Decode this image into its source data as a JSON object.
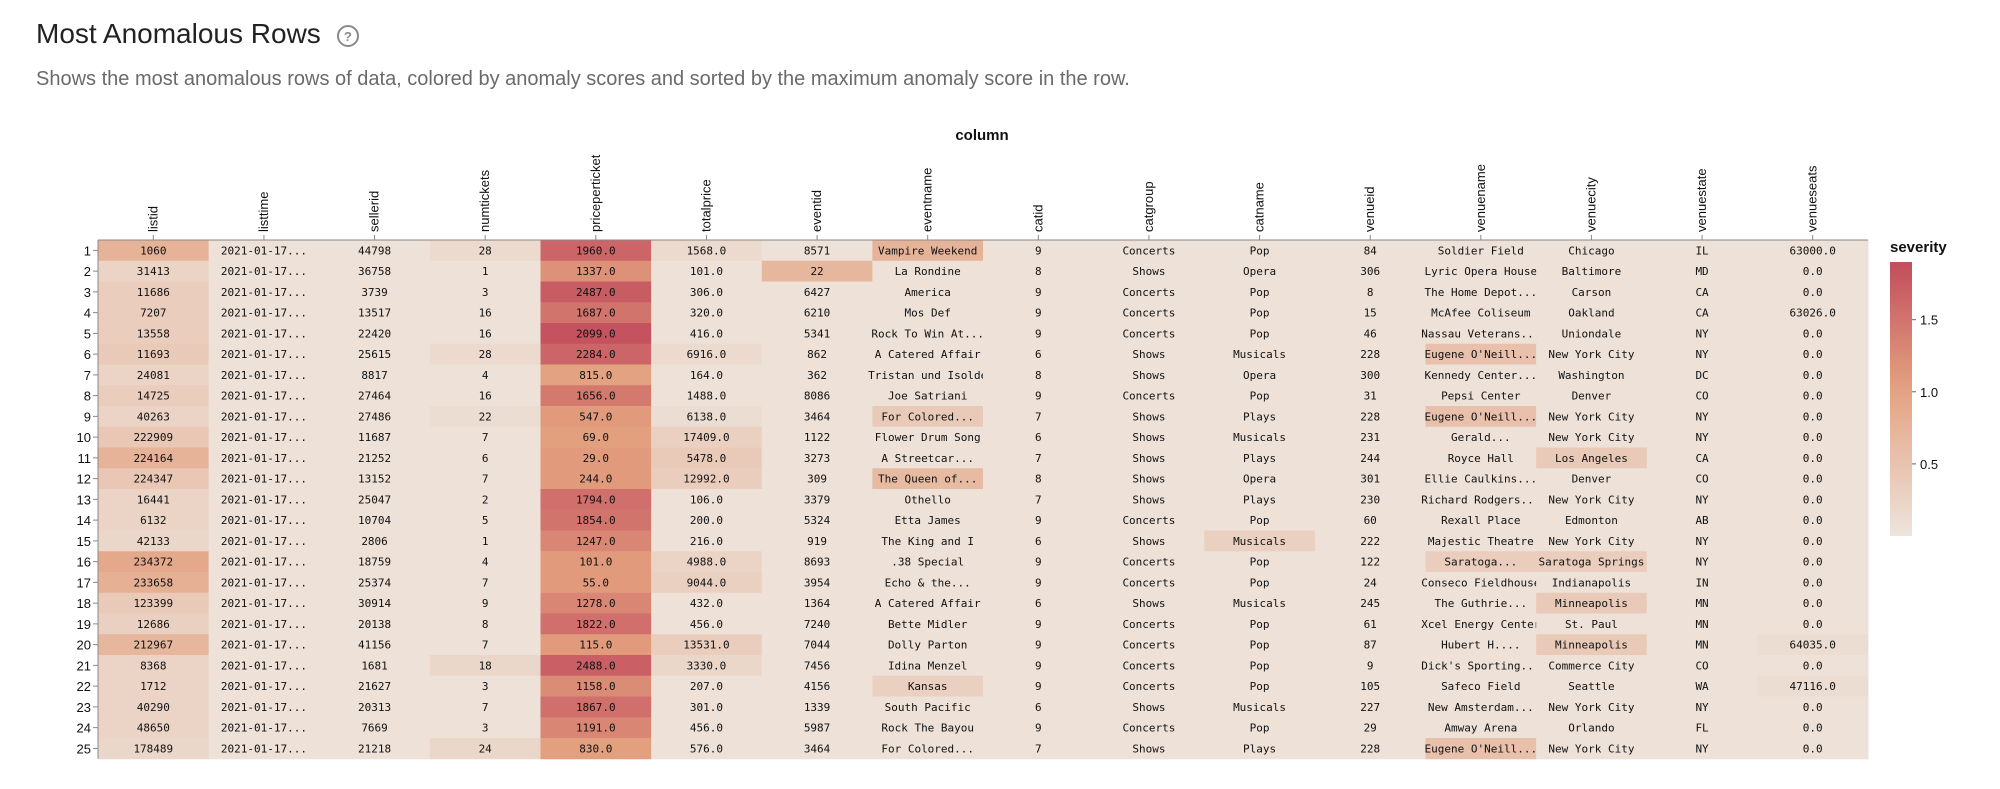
{
  "header": {
    "title": "Most Anomalous Rows",
    "help_glyph": "?",
    "subtitle": "Shows the most anomalous rows of data, colored by anomaly scores and sorted by the maximum anomaly score in the row."
  },
  "colors": {
    "low": "#ede4dc",
    "mid": "#e3a07e",
    "high": "#c24d5d"
  },
  "chart_data": {
    "type": "heatmap",
    "xlabel": "column",
    "legend_title": "severity",
    "legend_position": "right",
    "legend_ticks": [
      0.5,
      1.0,
      1.5
    ],
    "legend_tick_labels": [
      "0.5",
      "1.0",
      "1.5"
    ],
    "severity_range": [
      0,
      1.9
    ],
    "columns": [
      "listid",
      "listtime",
      "sellerid",
      "numtickets",
      "priceperticket",
      "totalprice",
      "eventid",
      "eventname",
      "catid",
      "catgroup",
      "catname",
      "venueid",
      "venuename",
      "venuecity",
      "venuestate",
      "venueseats"
    ],
    "row_labels": [
      "1",
      "2",
      "3",
      "4",
      "5",
      "6",
      "7",
      "8",
      "9",
      "10",
      "11",
      "12",
      "13",
      "14",
      "15",
      "16",
      "17",
      "18",
      "19",
      "20",
      "21",
      "22",
      "23",
      "24",
      "25"
    ],
    "values": [
      [
        "1060",
        "2021-01-17...",
        "44798",
        "28",
        "1960.0",
        "1568.0",
        "8571",
        "Vampire Weekend",
        "9",
        "Concerts",
        "Pop",
        "84",
        "Soldier Field",
        "Chicago",
        "IL",
        "63000.0"
      ],
      [
        "31413",
        "2021-01-17...",
        "36758",
        "1",
        "1337.0",
        "101.0",
        "22",
        "La Rondine",
        "8",
        "Shows",
        "Opera",
        "306",
        "Lyric Opera House",
        "Baltimore",
        "MD",
        "0.0"
      ],
      [
        "11686",
        "2021-01-17...",
        "3739",
        "3",
        "2487.0",
        "306.0",
        "6427",
        "America",
        "9",
        "Concerts",
        "Pop",
        "8",
        "The Home Depot...",
        "Carson",
        "CA",
        "0.0"
      ],
      [
        "7207",
        "2021-01-17...",
        "13517",
        "16",
        "1687.0",
        "320.0",
        "6210",
        "Mos Def",
        "9",
        "Concerts",
        "Pop",
        "15",
        "McAfee Coliseum",
        "Oakland",
        "CA",
        "63026.0"
      ],
      [
        "13558",
        "2021-01-17...",
        "22420",
        "16",
        "2099.0",
        "416.0",
        "5341",
        "Rock To Win At...",
        "9",
        "Concerts",
        "Pop",
        "46",
        "Nassau Veterans...",
        "Uniondale",
        "NY",
        "0.0"
      ],
      [
        "11693",
        "2021-01-17...",
        "25615",
        "28",
        "2284.0",
        "6916.0",
        "862",
        "A Catered Affair",
        "6",
        "Shows",
        "Musicals",
        "228",
        "Eugene O'Neill...",
        "New York City",
        "NY",
        "0.0"
      ],
      [
        "24081",
        "2021-01-17...",
        "8817",
        "4",
        "815.0",
        "164.0",
        "362",
        "Tristan und Isolde",
        "8",
        "Shows",
        "Opera",
        "300",
        "Kennedy Center...",
        "Washington",
        "DC",
        "0.0"
      ],
      [
        "14725",
        "2021-01-17...",
        "27464",
        "16",
        "1656.0",
        "1488.0",
        "8086",
        "Joe Satriani",
        "9",
        "Concerts",
        "Pop",
        "31",
        "Pepsi Center",
        "Denver",
        "CO",
        "0.0"
      ],
      [
        "40263",
        "2021-01-17...",
        "27486",
        "22",
        "547.0",
        "6138.0",
        "3464",
        "For Colored...",
        "7",
        "Shows",
        "Plays",
        "228",
        "Eugene O'Neill...",
        "New York City",
        "NY",
        "0.0"
      ],
      [
        "222909",
        "2021-01-17...",
        "11687",
        "7",
        "69.0",
        "17409.0",
        "1122",
        "Flower Drum Song",
        "6",
        "Shows",
        "Musicals",
        "231",
        "Gerald...",
        "New York City",
        "NY",
        "0.0"
      ],
      [
        "224164",
        "2021-01-17...",
        "21252",
        "6",
        "29.0",
        "5478.0",
        "3273",
        "A Streetcar...",
        "7",
        "Shows",
        "Plays",
        "244",
        "Royce Hall",
        "Los Angeles",
        "CA",
        "0.0"
      ],
      [
        "224347",
        "2021-01-17...",
        "13152",
        "7",
        "244.0",
        "12992.0",
        "309",
        "The Queen of...",
        "8",
        "Shows",
        "Opera",
        "301",
        "Ellie Caulkins...",
        "Denver",
        "CO",
        "0.0"
      ],
      [
        "16441",
        "2021-01-17...",
        "25047",
        "2",
        "1794.0",
        "106.0",
        "3379",
        "Othello",
        "7",
        "Shows",
        "Plays",
        "230",
        "Richard Rodgers...",
        "New York City",
        "NY",
        "0.0"
      ],
      [
        "6132",
        "2021-01-17...",
        "10704",
        "5",
        "1854.0",
        "200.0",
        "5324",
        "Etta James",
        "9",
        "Concerts",
        "Pop",
        "60",
        "Rexall Place",
        "Edmonton",
        "AB",
        "0.0"
      ],
      [
        "42133",
        "2021-01-17...",
        "2806",
        "1",
        "1247.0",
        "216.0",
        "919",
        "The King and I",
        "6",
        "Shows",
        "Musicals",
        "222",
        "Majestic Theatre",
        "New York City",
        "NY",
        "0.0"
      ],
      [
        "234372",
        "2021-01-17...",
        "18759",
        "4",
        "101.0",
        "4988.0",
        "8693",
        ".38 Special",
        "9",
        "Concerts",
        "Pop",
        "122",
        "Saratoga...",
        "Saratoga Springs",
        "NY",
        "0.0"
      ],
      [
        "233658",
        "2021-01-17...",
        "25374",
        "7",
        "55.0",
        "9044.0",
        "3954",
        "Echo & the...",
        "9",
        "Concerts",
        "Pop",
        "24",
        "Conseco Fieldhouse",
        "Indianapolis",
        "IN",
        "0.0"
      ],
      [
        "123399",
        "2021-01-17...",
        "30914",
        "9",
        "1278.0",
        "432.0",
        "1364",
        "A Catered Affair",
        "6",
        "Shows",
        "Musicals",
        "245",
        "The Guthrie...",
        "Minneapolis",
        "MN",
        "0.0"
      ],
      [
        "12686",
        "2021-01-17...",
        "20138",
        "8",
        "1822.0",
        "456.0",
        "7240",
        "Bette Midler",
        "9",
        "Concerts",
        "Pop",
        "61",
        "Xcel Energy Center",
        "St. Paul",
        "MN",
        "0.0"
      ],
      [
        "212967",
        "2021-01-17...",
        "41156",
        "7",
        "115.0",
        "13531.0",
        "7044",
        "Dolly Parton",
        "9",
        "Concerts",
        "Pop",
        "87",
        "Hubert H....",
        "Minneapolis",
        "MN",
        "64035.0"
      ],
      [
        "8368",
        "2021-01-17...",
        "1681",
        "18",
        "2488.0",
        "3330.0",
        "7456",
        "Idina Menzel",
        "9",
        "Concerts",
        "Pop",
        "9",
        "Dick's Sporting...",
        "Commerce City",
        "CO",
        "0.0"
      ],
      [
        "1712",
        "2021-01-17...",
        "21627",
        "3",
        "1158.0",
        "207.0",
        "4156",
        "Kansas",
        "9",
        "Concerts",
        "Pop",
        "105",
        "Safeco Field",
        "Seattle",
        "WA",
        "47116.0"
      ],
      [
        "40290",
        "2021-01-17...",
        "20313",
        "7",
        "1867.0",
        "301.0",
        "1339",
        "South Pacific",
        "6",
        "Shows",
        "Musicals",
        "227",
        "New Amsterdam...",
        "New York City",
        "NY",
        "0.0"
      ],
      [
        "48650",
        "2021-01-17...",
        "7669",
        "3",
        "1191.0",
        "456.0",
        "5987",
        "Rock The Bayou",
        "9",
        "Concerts",
        "Pop",
        "29",
        "Amway Arena",
        "Orlando",
        "FL",
        "0.0"
      ],
      [
        "178489",
        "2021-01-17...",
        "21218",
        "24",
        "830.0",
        "576.0",
        "3464",
        "For Colored...",
        "7",
        "Shows",
        "Plays",
        "228",
        "Eugene O'Neill...",
        "New York City",
        "NY",
        "0.0"
      ]
    ],
    "severity": [
      [
        0.75,
        0.05,
        0.05,
        0.15,
        1.65,
        0.15,
        0.05,
        0.75,
        0.05,
        0.05,
        0.05,
        0.05,
        0.05,
        0.05,
        0.05,
        0.05
      ],
      [
        0.25,
        0.05,
        0.05,
        0.05,
        1.2,
        0.05,
        0.7,
        0.05,
        0.05,
        0.05,
        0.05,
        0.05,
        0.05,
        0.05,
        0.05,
        0.05
      ],
      [
        0.35,
        0.05,
        0.05,
        0.05,
        1.75,
        0.05,
        0.05,
        0.05,
        0.05,
        0.05,
        0.05,
        0.05,
        0.05,
        0.05,
        0.05,
        0.05
      ],
      [
        0.35,
        0.05,
        0.05,
        0.05,
        1.5,
        0.05,
        0.05,
        0.05,
        0.05,
        0.05,
        0.05,
        0.05,
        0.05,
        0.05,
        0.05,
        0.05
      ],
      [
        0.35,
        0.05,
        0.05,
        0.05,
        1.85,
        0.05,
        0.05,
        0.05,
        0.05,
        0.05,
        0.05,
        0.05,
        0.05,
        0.05,
        0.05,
        0.05
      ],
      [
        0.4,
        0.05,
        0.05,
        0.15,
        1.65,
        0.15,
        0.05,
        0.05,
        0.05,
        0.05,
        0.05,
        0.05,
        0.55,
        0.05,
        0.05,
        0.05
      ],
      [
        0.25,
        0.05,
        0.05,
        0.05,
        1.0,
        0.05,
        0.05,
        0.05,
        0.05,
        0.05,
        0.05,
        0.05,
        0.05,
        0.05,
        0.05,
        0.05
      ],
      [
        0.35,
        0.05,
        0.05,
        0.05,
        1.45,
        0.05,
        0.05,
        0.05,
        0.05,
        0.05,
        0.05,
        0.05,
        0.05,
        0.05,
        0.05,
        0.05
      ],
      [
        0.25,
        0.05,
        0.05,
        0.1,
        1.1,
        0.1,
        0.05,
        0.4,
        0.05,
        0.05,
        0.05,
        0.05,
        0.55,
        0.05,
        0.05,
        0.05
      ],
      [
        0.45,
        0.05,
        0.05,
        0.05,
        1.05,
        0.3,
        0.05,
        0.05,
        0.05,
        0.05,
        0.05,
        0.05,
        0.05,
        0.05,
        0.05,
        0.05
      ],
      [
        0.75,
        0.05,
        0.05,
        0.05,
        1.1,
        0.4,
        0.05,
        0.05,
        0.05,
        0.05,
        0.05,
        0.05,
        0.05,
        0.4,
        0.05,
        0.05
      ],
      [
        0.45,
        0.05,
        0.05,
        0.05,
        1.1,
        0.35,
        0.05,
        0.65,
        0.05,
        0.05,
        0.05,
        0.05,
        0.05,
        0.05,
        0.05,
        0.05
      ],
      [
        0.25,
        0.05,
        0.05,
        0.05,
        1.55,
        0.05,
        0.05,
        0.05,
        0.05,
        0.05,
        0.05,
        0.05,
        0.05,
        0.05,
        0.05,
        0.05
      ],
      [
        0.25,
        0.05,
        0.05,
        0.05,
        1.5,
        0.05,
        0.05,
        0.05,
        0.05,
        0.05,
        0.05,
        0.05,
        0.05,
        0.05,
        0.05,
        0.05
      ],
      [
        0.2,
        0.05,
        0.05,
        0.05,
        1.3,
        0.05,
        0.05,
        0.05,
        0.05,
        0.05,
        0.3,
        0.05,
        0.05,
        0.05,
        0.05,
        0.05
      ],
      [
        0.9,
        0.05,
        0.05,
        0.05,
        1.1,
        0.25,
        0.05,
        0.05,
        0.05,
        0.05,
        0.05,
        0.05,
        0.35,
        0.35,
        0.05,
        0.05
      ],
      [
        0.8,
        0.05,
        0.05,
        0.05,
        1.1,
        0.3,
        0.05,
        0.05,
        0.05,
        0.05,
        0.05,
        0.05,
        0.05,
        0.05,
        0.05,
        0.05
      ],
      [
        0.4,
        0.05,
        0.05,
        0.05,
        1.3,
        0.05,
        0.05,
        0.05,
        0.05,
        0.05,
        0.05,
        0.05,
        0.05,
        0.4,
        0.05,
        0.05
      ],
      [
        0.3,
        0.05,
        0.05,
        0.05,
        1.55,
        0.05,
        0.05,
        0.05,
        0.05,
        0.05,
        0.05,
        0.05,
        0.05,
        0.05,
        0.05,
        0.05
      ],
      [
        0.7,
        0.05,
        0.05,
        0.05,
        1.1,
        0.35,
        0.05,
        0.05,
        0.05,
        0.05,
        0.05,
        0.05,
        0.05,
        0.4,
        0.05,
        0.1
      ],
      [
        0.25,
        0.05,
        0.05,
        0.2,
        1.7,
        0.2,
        0.05,
        0.05,
        0.05,
        0.05,
        0.05,
        0.05,
        0.05,
        0.05,
        0.05,
        0.05
      ],
      [
        0.25,
        0.05,
        0.05,
        0.05,
        1.25,
        0.05,
        0.05,
        0.3,
        0.05,
        0.05,
        0.05,
        0.05,
        0.05,
        0.05,
        0.05,
        0.1
      ],
      [
        0.25,
        0.05,
        0.05,
        0.05,
        1.55,
        0.05,
        0.05,
        0.05,
        0.05,
        0.05,
        0.05,
        0.05,
        0.05,
        0.05,
        0.05,
        0.05
      ],
      [
        0.25,
        0.05,
        0.05,
        0.05,
        1.3,
        0.05,
        0.05,
        0.05,
        0.05,
        0.05,
        0.05,
        0.05,
        0.05,
        0.05,
        0.05,
        0.05
      ],
      [
        0.2,
        0.05,
        0.05,
        0.2,
        1.05,
        0.05,
        0.05,
        0.05,
        0.05,
        0.05,
        0.05,
        0.05,
        0.55,
        0.05,
        0.05,
        0.05
      ]
    ]
  }
}
